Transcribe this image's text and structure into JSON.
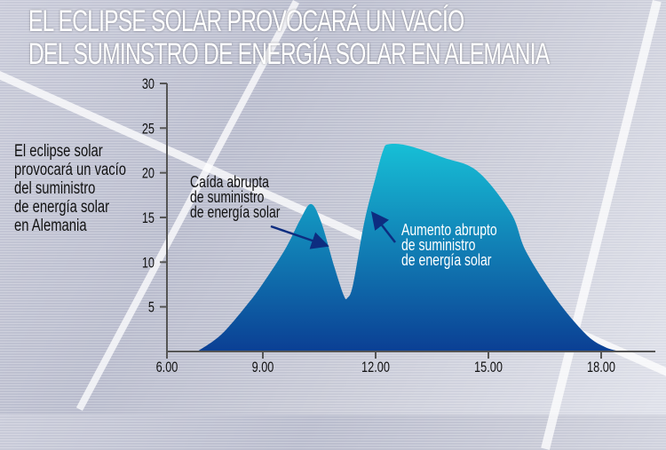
{
  "title": {
    "line1": "EL ECLIPSE SOLAR PROVOCARÁ UN VACÍO",
    "line2": "DEL SUMINSTRO DE ENERGÍA SOLAR EN ALEMANIA"
  },
  "side_text": [
    "El eclipse solar",
    "provocará un vacío",
    "del suministro",
    "de energía solar",
    "en Alemania"
  ],
  "annotations": {
    "drop": [
      "Caída abrupta",
      "de suministro",
      "de energía solar"
    ],
    "rise": [
      "Aumento abrupto",
      "de suministro",
      "de energía solar"
    ]
  },
  "colors": {
    "fill_top": "#17bfd6",
    "fill_bottom": "#0b3f94",
    "arrow": "#0d2d80",
    "axis": "#555555"
  },
  "chart_data": {
    "type": "area",
    "title": "EL ECLIPSE SOLAR PROVOCARÁ UN VACÍO DEL SUMINSTRO DE ENERGÍA SOLAR EN ALEMANIA",
    "xlabel": "",
    "ylabel": "",
    "xlim": [
      6,
      19
    ],
    "ylim": [
      0,
      30
    ],
    "x_ticks": [
      6,
      9,
      12,
      15,
      18
    ],
    "x_tick_labels": [
      "6.00",
      "9.00",
      "12.00",
      "15.00",
      "18.00"
    ],
    "y_ticks": [
      5,
      10,
      15,
      20,
      25,
      30
    ],
    "y_tick_labels": [
      "5",
      "10",
      "15",
      "20",
      "25",
      "30"
    ],
    "series": [
      {
        "name": "Suministro de energía solar",
        "x": [
          6.95,
          7.7,
          8.5,
          9.0,
          9.6,
          10.0,
          10.28,
          10.55,
          10.9,
          11.15,
          11.25,
          11.4,
          11.7,
          12.0,
          12.2,
          12.35,
          12.9,
          13.8,
          14.7,
          15.6,
          16.0,
          16.8,
          17.6,
          18.1,
          18.5
        ],
        "y": [
          0,
          1.9,
          5.2,
          7.6,
          11.5,
          14.8,
          16.5,
          14.5,
          9.5,
          6.3,
          6.0,
          7.5,
          14.5,
          19.5,
          22.5,
          23.2,
          23.0,
          21.7,
          20.2,
          15.5,
          11.2,
          5.9,
          1.9,
          0.5,
          0
        ]
      }
    ],
    "grid": false,
    "legend": "none"
  }
}
